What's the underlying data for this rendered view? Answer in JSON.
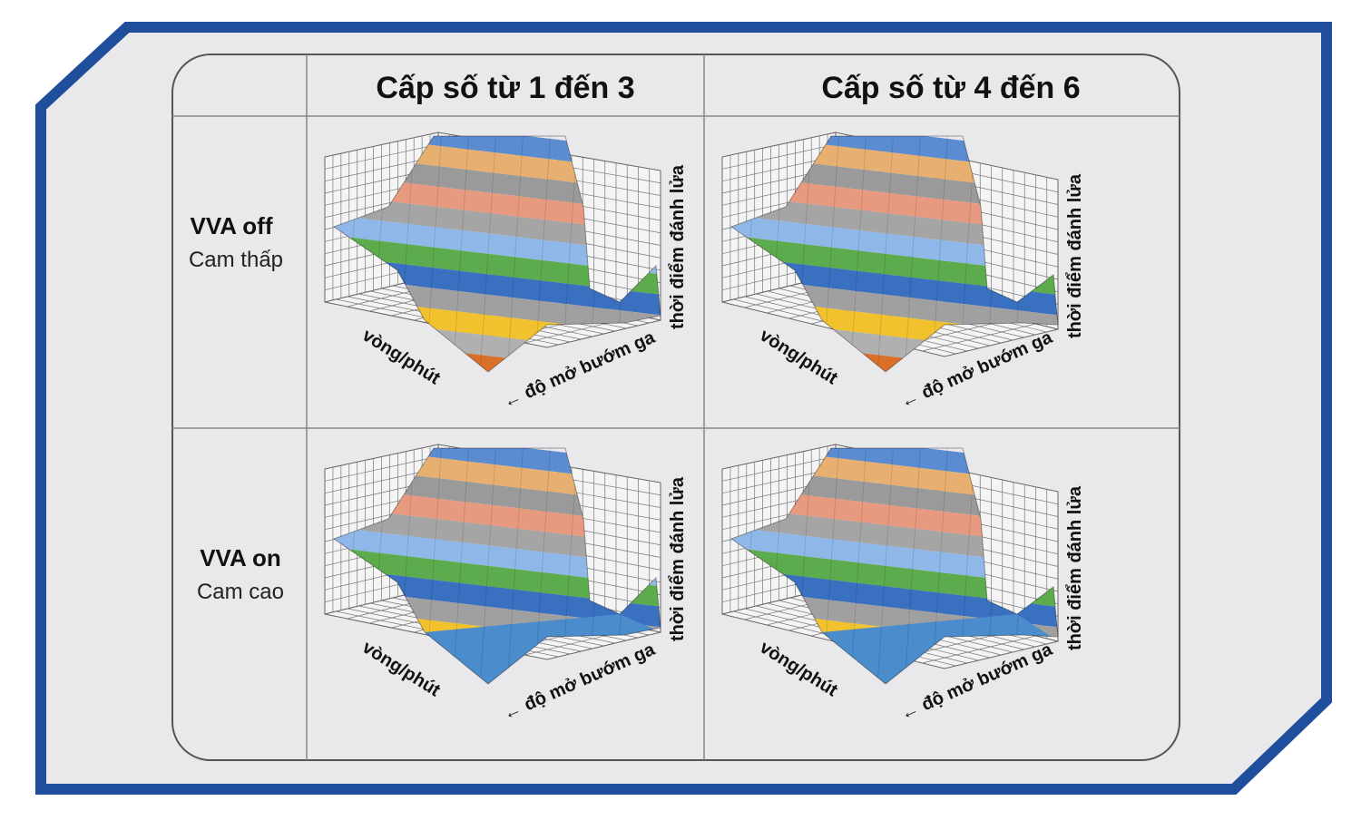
{
  "table": {
    "columns": [
      "Cấp số từ 1 đến 3",
      "Cấp số từ 4 đến 6"
    ],
    "rows": [
      {
        "title": "VVA off",
        "subtitle": "Cam thấp"
      },
      {
        "title": "VVA on",
        "subtitle": "Cam cao"
      }
    ],
    "cells": [
      [
        {
          "x_label": "vòng/phút",
          "y_label": "← độ mở bướm ga",
          "z_label": "thời điểm đánh lửa"
        },
        {
          "x_label": "vòng/phút",
          "y_label": "← độ mở bướm ga",
          "z_label": "thời điểm đánh lửa"
        }
      ],
      [
        {
          "x_label": "vòng/phút",
          "y_label": "← độ mở bướm ga",
          "z_label": "thời điểm đánh lửa"
        },
        {
          "x_label": "vòng/phút",
          "y_label": "← độ mở bướm ga",
          "z_label": "thời điểm đánh lửa"
        }
      ]
    ]
  }
}
